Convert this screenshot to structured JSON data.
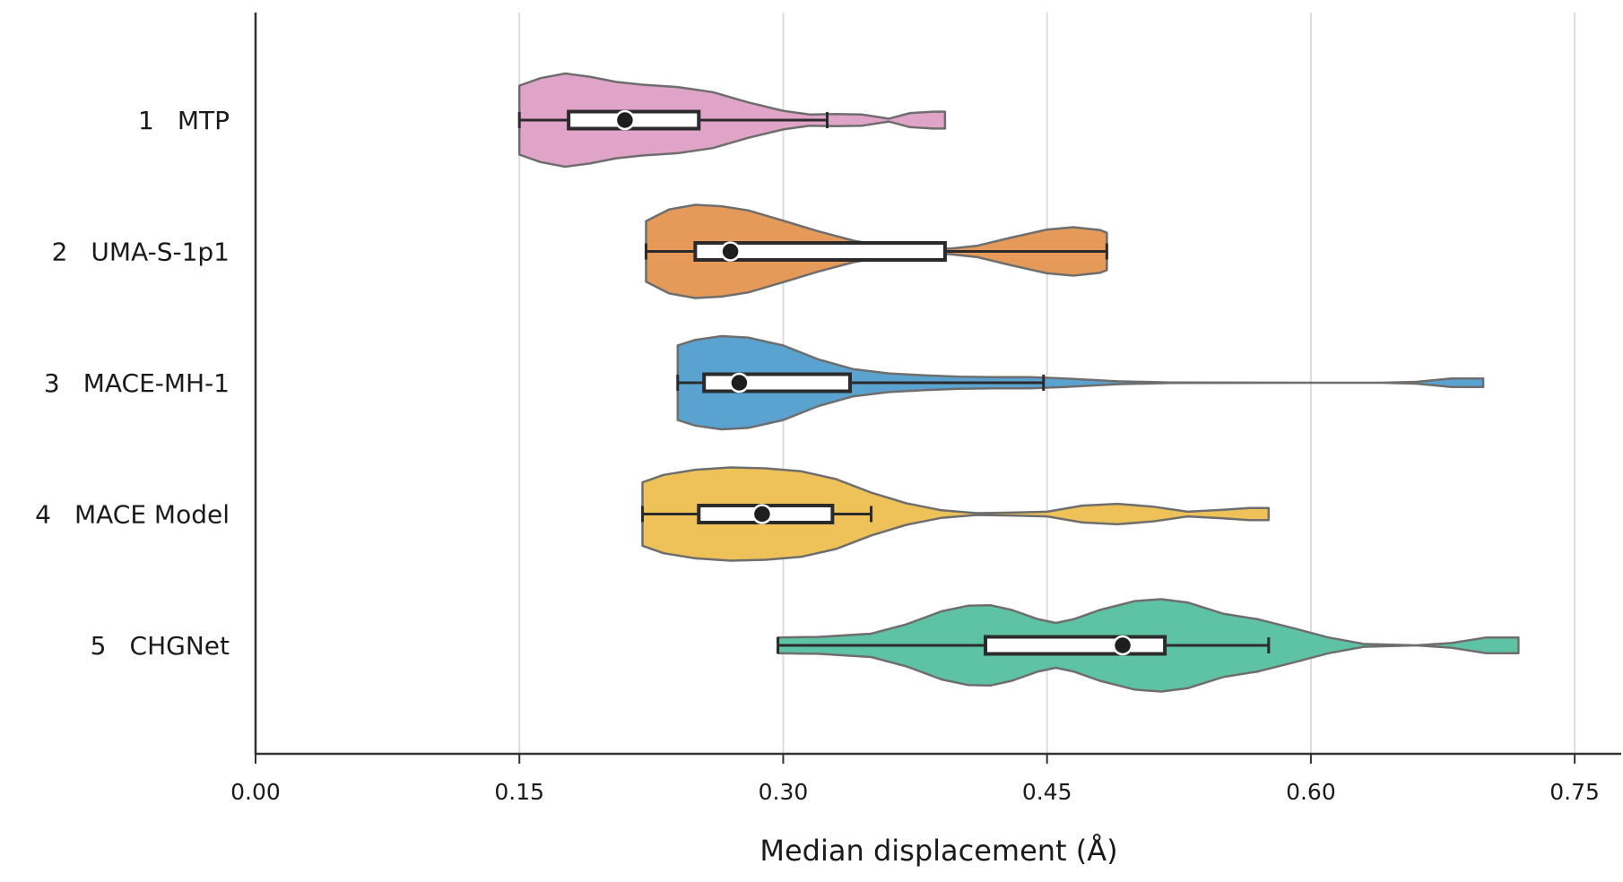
{
  "chart_data": {
    "type": "violin",
    "title": "",
    "xlabel": "Median displacement (Å)",
    "ylabel": "",
    "xlim": [
      0.0,
      0.76
    ],
    "xticks": [
      0.0,
      0.15,
      0.3,
      0.45,
      0.6,
      0.75
    ],
    "xtick_labels": [
      "0.00",
      "0.15",
      "0.30",
      "0.45",
      "0.60",
      "0.75"
    ],
    "grid": "vertical",
    "legend": "none",
    "categories": [
      {
        "rank": "1",
        "name": "MTP",
        "color": "#E0A4C8",
        "min": 0.15,
        "q1": 0.178,
        "median": 0.21,
        "q3": 0.252,
        "whisker_high": 0.325,
        "max": 0.392,
        "density": [
          [
            0.15,
            0.74
          ],
          [
            0.162,
            0.9
          ],
          [
            0.176,
            1.0
          ],
          [
            0.19,
            0.93
          ],
          [
            0.205,
            0.82
          ],
          [
            0.22,
            0.76
          ],
          [
            0.24,
            0.71
          ],
          [
            0.26,
            0.6
          ],
          [
            0.28,
            0.38
          ],
          [
            0.3,
            0.2
          ],
          [
            0.315,
            0.12
          ],
          [
            0.33,
            0.13
          ],
          [
            0.345,
            0.12
          ],
          [
            0.36,
            0.03
          ],
          [
            0.372,
            0.15
          ],
          [
            0.385,
            0.18
          ],
          [
            0.392,
            0.18
          ]
        ]
      },
      {
        "rank": "2",
        "name": "UMA-S-1p1",
        "color": "#E69A5A",
        "min": 0.222,
        "q1": 0.25,
        "median": 0.27,
        "q3": 0.392,
        "whisker_high": 0.484,
        "max": 0.484,
        "density": [
          [
            0.222,
            0.65
          ],
          [
            0.235,
            0.9
          ],
          [
            0.25,
            1.0
          ],
          [
            0.265,
            0.97
          ],
          [
            0.28,
            0.88
          ],
          [
            0.3,
            0.66
          ],
          [
            0.32,
            0.43
          ],
          [
            0.34,
            0.23
          ],
          [
            0.36,
            0.1
          ],
          [
            0.38,
            0.06
          ],
          [
            0.395,
            0.06
          ],
          [
            0.41,
            0.12
          ],
          [
            0.43,
            0.3
          ],
          [
            0.45,
            0.47
          ],
          [
            0.465,
            0.52
          ],
          [
            0.48,
            0.46
          ],
          [
            0.484,
            0.4
          ]
        ]
      },
      {
        "rank": "3",
        "name": "MACE-MH-1",
        "color": "#5AA3D0",
        "min": 0.24,
        "q1": 0.255,
        "median": 0.275,
        "q3": 0.338,
        "whisker_high": 0.448,
        "max": 0.698,
        "density": [
          [
            0.24,
            0.8
          ],
          [
            0.25,
            0.92
          ],
          [
            0.265,
            1.0
          ],
          [
            0.28,
            0.97
          ],
          [
            0.3,
            0.8
          ],
          [
            0.32,
            0.5
          ],
          [
            0.34,
            0.29
          ],
          [
            0.36,
            0.2
          ],
          [
            0.38,
            0.16
          ],
          [
            0.4,
            0.13
          ],
          [
            0.42,
            0.12
          ],
          [
            0.44,
            0.12
          ],
          [
            0.46,
            0.09
          ],
          [
            0.49,
            0.03
          ],
          [
            0.52,
            0.005
          ],
          [
            0.6,
            0.0
          ],
          [
            0.64,
            0.0
          ],
          [
            0.66,
            0.02
          ],
          [
            0.68,
            0.09
          ],
          [
            0.698,
            0.09
          ]
        ]
      },
      {
        "rank": "4",
        "name": "MACE Model",
        "color": "#EFC259",
        "min": 0.22,
        "q1": 0.252,
        "median": 0.288,
        "q3": 0.328,
        "whisker_high": 0.35,
        "max": 0.576,
        "density": [
          [
            0.22,
            0.68
          ],
          [
            0.232,
            0.84
          ],
          [
            0.25,
            0.95
          ],
          [
            0.27,
            1.0
          ],
          [
            0.29,
            0.98
          ],
          [
            0.31,
            0.92
          ],
          [
            0.33,
            0.75
          ],
          [
            0.35,
            0.46
          ],
          [
            0.37,
            0.23
          ],
          [
            0.39,
            0.08
          ],
          [
            0.41,
            0.02
          ],
          [
            0.43,
            0.03
          ],
          [
            0.45,
            0.05
          ],
          [
            0.47,
            0.18
          ],
          [
            0.49,
            0.22
          ],
          [
            0.51,
            0.16
          ],
          [
            0.53,
            0.05
          ],
          [
            0.55,
            0.09
          ],
          [
            0.565,
            0.13
          ],
          [
            0.576,
            0.13
          ]
        ]
      },
      {
        "rank": "5",
        "name": "CHGNet",
        "color": "#5EC3A4",
        "min": 0.297,
        "q1": 0.415,
        "median": 0.493,
        "q3": 0.517,
        "whisker_high": 0.576,
        "max": 0.718,
        "density": [
          [
            0.297,
            0.17
          ],
          [
            0.32,
            0.18
          ],
          [
            0.35,
            0.25
          ],
          [
            0.37,
            0.45
          ],
          [
            0.39,
            0.73
          ],
          [
            0.405,
            0.85
          ],
          [
            0.418,
            0.86
          ],
          [
            0.43,
            0.76
          ],
          [
            0.445,
            0.56
          ],
          [
            0.455,
            0.48
          ],
          [
            0.465,
            0.56
          ],
          [
            0.48,
            0.76
          ],
          [
            0.5,
            0.95
          ],
          [
            0.515,
            0.99
          ],
          [
            0.53,
            0.92
          ],
          [
            0.55,
            0.68
          ],
          [
            0.57,
            0.56
          ],
          [
            0.59,
            0.37
          ],
          [
            0.61,
            0.17
          ],
          [
            0.63,
            0.03
          ],
          [
            0.66,
            0.0
          ],
          [
            0.68,
            0.05
          ],
          [
            0.7,
            0.17
          ],
          [
            0.718,
            0.17
          ]
        ]
      }
    ]
  }
}
